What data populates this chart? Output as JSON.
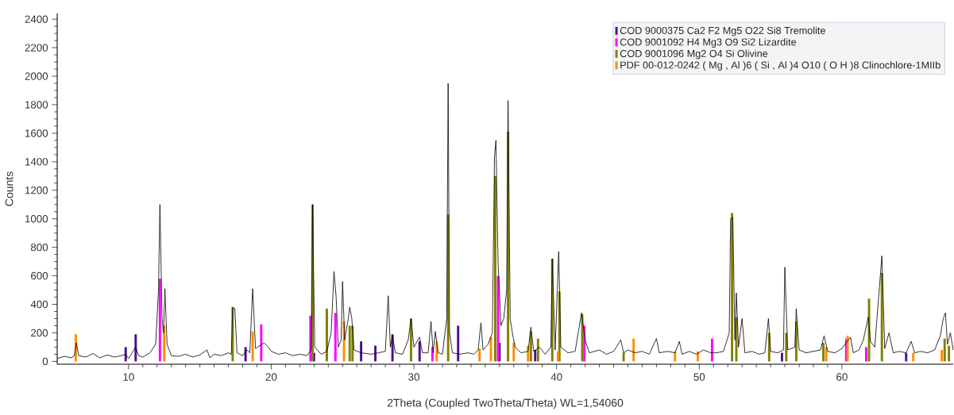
{
  "chart_data": {
    "type": "line",
    "xlabel": "2Theta (Coupled TwoTheta/Theta) WL=1,54060",
    "ylabel": "Counts",
    "xlim": [
      5,
      67.8
    ],
    "ylim": [
      -20,
      2440
    ],
    "xticks": [
      10,
      20,
      30,
      40,
      50,
      60
    ],
    "yticks": [
      0,
      200,
      400,
      600,
      800,
      1000,
      1200,
      1400,
      1600,
      1800,
      2000,
      2200,
      2400
    ],
    "legend": "top right",
    "marker": "none",
    "line_style": "solid",
    "series": [
      {
        "color": "#000000",
        "x": [
          5.0,
          5.5,
          6.0,
          6.2,
          6.35,
          6.5,
          7.0,
          7.5,
          8.0,
          8.5,
          9.0,
          9.5,
          9.8,
          10.0,
          10.5,
          10.7,
          11.0,
          11.5,
          11.9,
          12.1,
          12.2,
          12.35,
          12.45,
          12.55,
          12.7,
          13.0,
          13.5,
          14.0,
          14.5,
          15.0,
          15.5,
          15.7,
          16.0,
          16.5,
          17.0,
          17.2,
          17.3,
          17.45,
          17.6,
          18.0,
          18.3,
          18.5,
          18.7,
          18.9,
          19.2,
          19.5,
          19.8,
          20.0,
          20.5,
          21.0,
          21.5,
          22.0,
          22.5,
          22.8,
          22.9,
          23.05,
          23.5,
          23.9,
          24.2,
          24.4,
          24.55,
          24.7,
          24.9,
          25.0,
          25.15,
          25.4,
          25.5,
          25.65,
          25.8,
          26.3,
          27.0,
          27.5,
          28.0,
          28.2,
          28.35,
          28.5,
          28.7,
          29.2,
          29.6,
          29.8,
          30.0,
          30.4,
          30.6,
          31.0,
          31.2,
          31.35,
          31.5,
          31.7,
          32.0,
          32.3,
          32.4,
          32.5,
          32.7,
          33.2,
          33.8,
          34.2,
          34.5,
          34.7,
          34.85,
          35.2,
          35.5,
          35.65,
          35.75,
          35.9,
          36.1,
          36.3,
          36.5,
          36.6,
          36.75,
          36.9,
          37.1,
          37.5,
          38.0,
          38.2,
          38.4,
          38.8,
          39.2,
          39.6,
          39.7,
          39.9,
          40.15,
          40.3,
          40.8,
          41.3,
          41.75,
          42.0,
          42.3,
          43.0,
          43.5,
          44.0,
          44.5,
          44.7,
          45.0,
          45.5,
          46.0,
          46.5,
          47.0,
          47.2,
          47.8,
          48.3,
          48.6,
          48.8,
          49.3,
          49.8,
          50.3,
          50.8,
          51.2,
          51.7,
          52.1,
          52.2,
          52.35,
          52.5,
          52.6,
          52.75,
          53.0,
          53.2,
          53.7,
          54.2,
          54.6,
          54.85,
          55.0,
          55.5,
          55.9,
          56.0,
          56.2,
          56.7,
          56.8,
          57.0,
          57.5,
          58.0,
          58.5,
          58.75,
          59.0,
          59.5,
          60.0,
          60.6,
          60.8,
          61.2,
          61.5,
          61.85,
          62.0,
          62.3,
          62.8,
          63.0,
          63.3,
          63.6,
          64.0,
          64.5,
          64.85,
          65.1,
          65.5,
          66.0,
          66.5,
          66.9,
          67.1,
          67.25,
          67.4,
          67.6,
          67.8
        ],
        "values": [
          20,
          35,
          25,
          40,
          130,
          40,
          30,
          55,
          25,
          45,
          30,
          40,
          50,
          20,
          100,
          40,
          30,
          60,
          120,
          500,
          1100,
          300,
          200,
          510,
          120,
          40,
          35,
          50,
          30,
          45,
          80,
          25,
          50,
          40,
          60,
          50,
          380,
          370,
          60,
          40,
          80,
          60,
          510,
          90,
          110,
          130,
          100,
          70,
          50,
          60,
          40,
          50,
          40,
          80,
          1100,
          100,
          50,
          70,
          200,
          630,
          450,
          100,
          150,
          560,
          150,
          300,
          380,
          300,
          80,
          60,
          50,
          60,
          70,
          460,
          100,
          180,
          60,
          50,
          150,
          300,
          100,
          170,
          60,
          60,
          280,
          60,
          210,
          60,
          50,
          300,
          1950,
          200,
          60,
          50,
          60,
          50,
          80,
          270,
          80,
          120,
          200,
          1440,
          1550,
          700,
          250,
          300,
          500,
          1830,
          300,
          200,
          100,
          60,
          70,
          240,
          70,
          100,
          50,
          100,
          720,
          80,
          770,
          100,
          60,
          70,
          340,
          150,
          60,
          80,
          50,
          70,
          150,
          60,
          80,
          60,
          70,
          50,
          160,
          60,
          70,
          60,
          140,
          50,
          70,
          50,
          80,
          60,
          60,
          70,
          200,
          1000,
          1010,
          150,
          480,
          100,
          300,
          60,
          70,
          50,
          60,
          300,
          70,
          60,
          80,
          660,
          80,
          100,
          370,
          80,
          60,
          70,
          80,
          180,
          70,
          60,
          90,
          170,
          60,
          80,
          150,
          310,
          140,
          100,
          740,
          90,
          200,
          60,
          70,
          60,
          140,
          60,
          70,
          60,
          80,
          180,
          300,
          340,
          120,
          200,
          80
        ]
      },
      {
        "type": "bar",
        "name": "COD 9000375 Ca2 F2 Mg5 O22 Si8 Tremolite",
        "color": "#4b0f8c",
        "x": [
          9.8,
          10.5,
          18.2,
          23.0,
          26.3,
          27.3,
          28.5,
          30.4,
          33.1,
          36.0,
          38.5,
          55.8,
          64.5
        ],
        "values": [
          100,
          190,
          100,
          60,
          140,
          110,
          190,
          140,
          250,
          130,
          80,
          60,
          60
        ]
      },
      {
        "type": "bar",
        "name": "COD 9001092 H4 Mg3 O9 Si2 Lizardite",
        "color": "#ff00ff",
        "x": [
          12.2,
          19.3,
          22.75,
          24.5,
          31.3,
          35.9,
          41.95,
          50.9,
          60.3,
          61.7
        ],
        "values": [
          580,
          260,
          320,
          340,
          100,
          600,
          250,
          160,
          160,
          100
        ]
      },
      {
        "type": "bar",
        "name": "COD 9001096 Mg2 O4 Si Olivine",
        "color": "#808000",
        "x": [
          17.3,
          22.9,
          23.9,
          25.5,
          25.7,
          29.8,
          32.4,
          35.7,
          36.6,
          38.2,
          38.7,
          39.7,
          40.2,
          41.8,
          44.7,
          52.3,
          52.6,
          54.9,
          56.1,
          56.8,
          58.7,
          61.9,
          62.8,
          67.2,
          67.5
        ],
        "values": [
          380,
          1100,
          370,
          250,
          250,
          300,
          1030,
          1300,
          1610,
          210,
          160,
          720,
          490,
          330,
          60,
          1040,
          310,
          200,
          200,
          280,
          130,
          440,
          620,
          160,
          110
        ]
      },
      {
        "type": "bar",
        "name": "PDF 00-012-0242 ( Mg , Al )6 ( Si , Al )4 O10 ( O H )8 Clinochlore-1MIIb",
        "color": "#ff8c00",
        "x": [
          6.3,
          12.5,
          18.7,
          25.1,
          31.6,
          34.6,
          35.4,
          37.0,
          38.0,
          40.1,
          45.4,
          48.3,
          49.9,
          58.9,
          60.4,
          65.0,
          67.0
        ],
        "values": [
          190,
          250,
          210,
          280,
          140,
          90,
          170,
          130,
          110,
          70,
          160,
          70,
          70,
          100,
          180,
          60,
          80
        ]
      }
    ]
  }
}
